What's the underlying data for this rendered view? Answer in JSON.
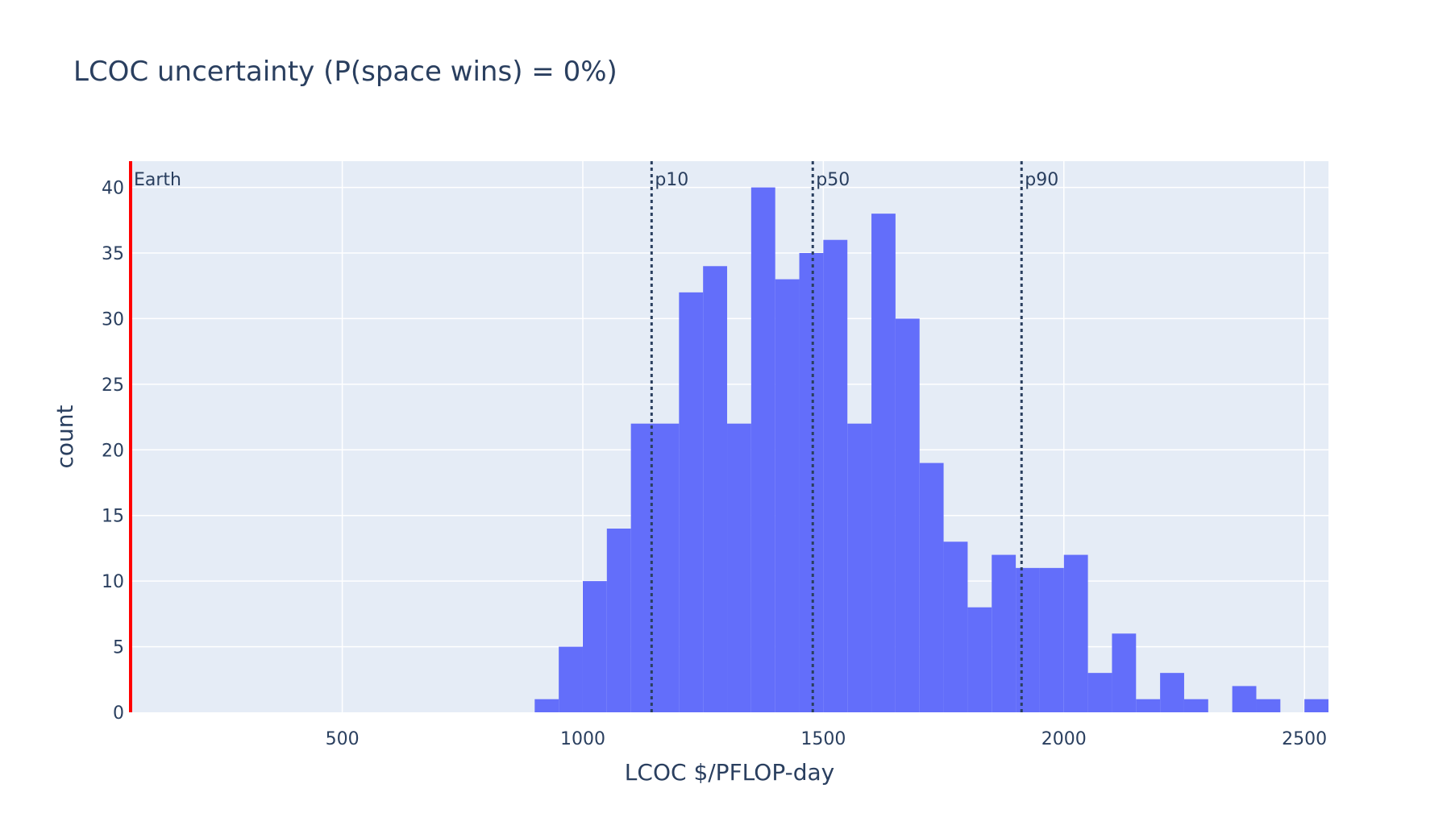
{
  "chart_data": {
    "type": "bar",
    "title": "LCOC uncertainty (P(space wins) = 0%)",
    "xlabel": "LCOC $/PFLOP-day",
    "ylabel": "count",
    "xlim": [
      60,
      2550
    ],
    "ylim": [
      0,
      42
    ],
    "xticks": [
      500,
      1000,
      1500,
      2000,
      2500
    ],
    "yticks": [
      0,
      5,
      10,
      15,
      20,
      25,
      30,
      35,
      40
    ],
    "grid": true,
    "bin_width": 50,
    "bins": [
      {
        "x0": 900,
        "count": 1
      },
      {
        "x0": 950,
        "count": 5
      },
      {
        "x0": 1000,
        "count": 10
      },
      {
        "x0": 1050,
        "count": 14
      },
      {
        "x0": 1100,
        "count": 22
      },
      {
        "x0": 1150,
        "count": 22
      },
      {
        "x0": 1200,
        "count": 32
      },
      {
        "x0": 1250,
        "count": 34
      },
      {
        "x0": 1300,
        "count": 22
      },
      {
        "x0": 1350,
        "count": 40
      },
      {
        "x0": 1400,
        "count": 33
      },
      {
        "x0": 1450,
        "count": 35
      },
      {
        "x0": 1500,
        "count": 36
      },
      {
        "x0": 1550,
        "count": 22
      },
      {
        "x0": 1600,
        "count": 38
      },
      {
        "x0": 1650,
        "count": 30
      },
      {
        "x0": 1700,
        "count": 19
      },
      {
        "x0": 1750,
        "count": 13
      },
      {
        "x0": 1800,
        "count": 8
      },
      {
        "x0": 1850,
        "count": 12
      },
      {
        "x0": 1900,
        "count": 11
      },
      {
        "x0": 1950,
        "count": 11
      },
      {
        "x0": 2000,
        "count": 12
      },
      {
        "x0": 2050,
        "count": 3
      },
      {
        "x0": 2100,
        "count": 6
      },
      {
        "x0": 2150,
        "count": 1
      },
      {
        "x0": 2200,
        "count": 3
      },
      {
        "x0": 2250,
        "count": 1
      },
      {
        "x0": 2350,
        "count": 2
      },
      {
        "x0": 2400,
        "count": 1
      },
      {
        "x0": 2500,
        "count": 1
      }
    ],
    "reference_lines": [
      {
        "label": "Earth",
        "x": 60,
        "style": "solid",
        "color": "#ff0000"
      },
      {
        "label": "p10",
        "x": 1143,
        "style": "dotted",
        "color": "#2a3f5f"
      },
      {
        "label": "p50",
        "x": 1478,
        "style": "dotted",
        "color": "#2a3f5f"
      },
      {
        "label": "p90",
        "x": 1912,
        "style": "dotted",
        "color": "#2a3f5f"
      }
    ],
    "colors": {
      "bar": "#636efa",
      "plot_background": "#e5ecf6",
      "grid": "#ffffff",
      "text": "#2a3f5f"
    }
  }
}
